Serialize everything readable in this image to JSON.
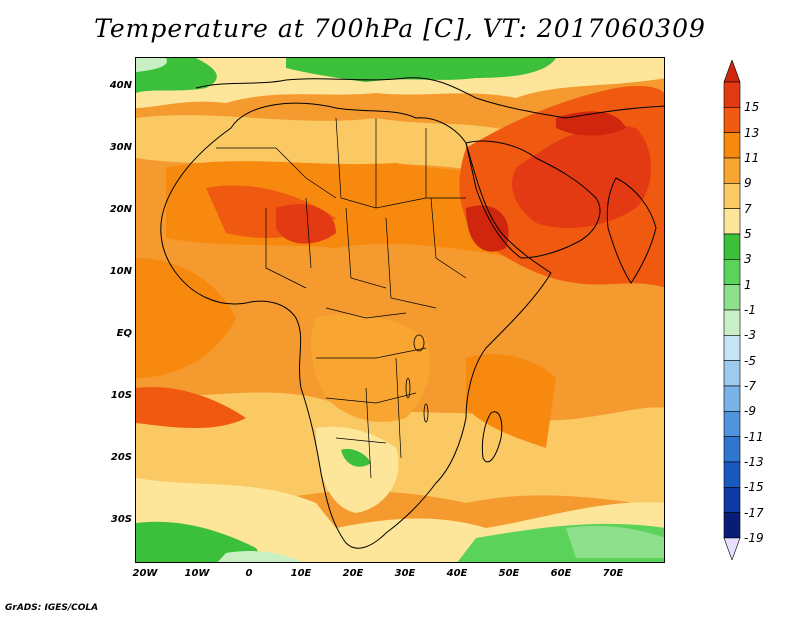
{
  "title": "Temperature at 700hPa [C], VT: 2017060309",
  "footer": "GrADS: IGES/COLA",
  "map": {
    "lat_labels": [
      "40N",
      "30N",
      "20N",
      "10N",
      "EQ",
      "10S",
      "20S",
      "30S"
    ],
    "lat_values": [
      40,
      30,
      20,
      10,
      0,
      -10,
      -20,
      -30
    ],
    "lon_labels": [
      "20W",
      "10W",
      "0",
      "10E",
      "20E",
      "30E",
      "40E",
      "50E",
      "60E",
      "70E"
    ],
    "lon_values": [
      -20,
      -10,
      0,
      10,
      20,
      30,
      40,
      50,
      60,
      70
    ],
    "extent": {
      "lon_min": -22,
      "lon_max": 80,
      "lat_min": -37,
      "lat_max": 45
    }
  },
  "colorbar": {
    "labels": [
      "15",
      "13",
      "11",
      "9",
      "7",
      "5",
      "3",
      "1",
      "-1",
      "-3",
      "-5",
      "-7",
      "-9",
      "-11",
      "-13",
      "-15",
      "-17",
      "-19"
    ],
    "colors": [
      "#e43a14",
      "#f05a10",
      "#f78a0e",
      "#f9a531",
      "#fbc964",
      "#fde59a",
      "#3cbf3a",
      "#5bd35a",
      "#8ee08c",
      "#c9f0c5",
      "#c6e4f5",
      "#9ccbee",
      "#79b3e6",
      "#4f94dc",
      "#2f76ce",
      "#1958bf",
      "#0d3aa5",
      "#081c78"
    ],
    "top_color": "#d0260e",
    "bottom_color": "#e8e0ff"
  }
}
